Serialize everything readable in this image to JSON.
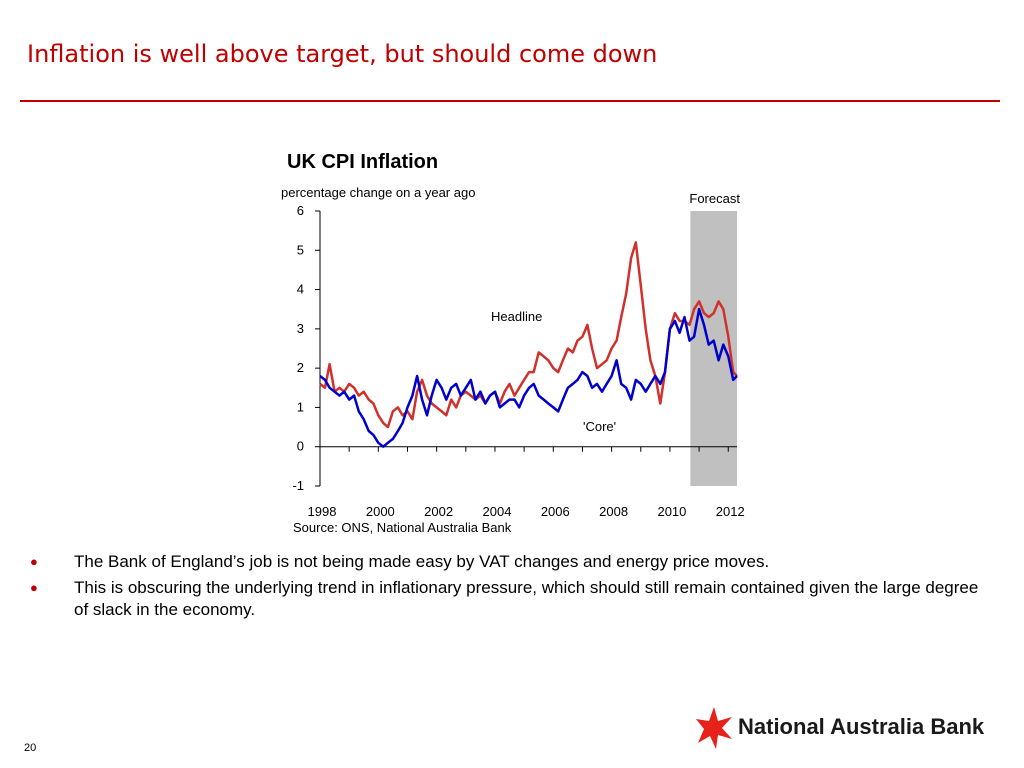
{
  "slide": {
    "title": "Inflation is well above target, but should come down",
    "page_number": "20"
  },
  "bullets": [
    "The Bank of England’s job is not being made easy by VAT changes and energy price moves.",
    "This is obscuring the underlying trend in inflationary pressure, which should still remain contained given the large degree of slack in the economy."
  ],
  "logo": {
    "text": "National Australia Bank",
    "icon": "star-icon"
  },
  "colors": {
    "title": "#c00000",
    "headline": "#d0312d",
    "core": "#0000cc",
    "forecast_band": "#c0c0c0"
  },
  "chart_data": {
    "type": "line",
    "title": "UK CPI Inflation",
    "ylabel": "percentage change on a year ago",
    "source": "Source: ONS,  National Australia Bank",
    "ylim": [
      -1,
      6
    ],
    "yticks": [
      "6",
      "5",
      "4",
      "3",
      "2",
      "1",
      "0",
      "-1"
    ],
    "xlim": [
      1998,
      2012.3
    ],
    "xticks": [
      "1998",
      "2000",
      "2002",
      "2004",
      "2006",
      "2008",
      "2010",
      "2012"
    ],
    "forecast": {
      "label": "Forecast",
      "from": 2010.7,
      "to": 2012.3
    },
    "annotations": {
      "headline": "Headline",
      "core": "'Core'"
    },
    "series": [
      {
        "key": "headline",
        "x": [
          1998.0,
          1998.17,
          1998.33,
          1998.5,
          1998.67,
          1998.83,
          1999.0,
          1999.17,
          1999.33,
          1999.5,
          1999.67,
          1999.83,
          2000.0,
          2000.17,
          2000.33,
          2000.5,
          2000.67,
          2000.83,
          2001.0,
          2001.17,
          2001.33,
          2001.5,
          2001.67,
          2001.83,
          2002.0,
          2002.17,
          2002.33,
          2002.5,
          2002.67,
          2002.83,
          2003.0,
          2003.17,
          2003.33,
          2003.5,
          2003.67,
          2003.83,
          2004.0,
          2004.17,
          2004.33,
          2004.5,
          2004.67,
          2004.83,
          2005.0,
          2005.17,
          2005.33,
          2005.5,
          2005.67,
          2005.83,
          2006.0,
          2006.17,
          2006.33,
          2006.5,
          2006.67,
          2006.83,
          2007.0,
          2007.17,
          2007.33,
          2007.5,
          2007.67,
          2007.83,
          2008.0,
          2008.17,
          2008.33,
          2008.5,
          2008.67,
          2008.83,
          2009.0,
          2009.17,
          2009.33,
          2009.5,
          2009.67,
          2009.83,
          2010.0,
          2010.17,
          2010.33,
          2010.5,
          2010.67,
          2010.83,
          2011.0,
          2011.17,
          2011.33,
          2011.5,
          2011.67,
          2011.83,
          2012.0,
          2012.17,
          2012.3
        ],
        "y": [
          1.6,
          1.5,
          2.1,
          1.4,
          1.5,
          1.4,
          1.6,
          1.5,
          1.3,
          1.4,
          1.2,
          1.1,
          0.8,
          0.6,
          0.5,
          0.9,
          1.0,
          0.8,
          0.9,
          0.7,
          1.4,
          1.7,
          1.3,
          1.1,
          1.0,
          0.9,
          0.8,
          1.2,
          1.0,
          1.3,
          1.4,
          1.3,
          1.2,
          1.3,
          1.1,
          1.3,
          1.4,
          1.1,
          1.4,
          1.6,
          1.3,
          1.5,
          1.7,
          1.9,
          1.9,
          2.4,
          2.3,
          2.2,
          2.0,
          1.9,
          2.2,
          2.5,
          2.4,
          2.7,
          2.8,
          3.1,
          2.5,
          2.0,
          2.1,
          2.2,
          2.5,
          2.7,
          3.3,
          3.9,
          4.8,
          5.2,
          4.1,
          3.0,
          2.2,
          1.8,
          1.1,
          1.9,
          3.0,
          3.4,
          3.2,
          3.2,
          3.1,
          3.5,
          3.7,
          3.4,
          3.3,
          3.4,
          3.7,
          3.5,
          2.8,
          1.9,
          1.8
        ]
      },
      {
        "key": "core",
        "x": [
          1998.0,
          1998.17,
          1998.33,
          1998.5,
          1998.67,
          1998.83,
          1999.0,
          1999.17,
          1999.33,
          1999.5,
          1999.67,
          1999.83,
          2000.0,
          2000.17,
          2000.33,
          2000.5,
          2000.67,
          2000.83,
          2001.0,
          2001.17,
          2001.33,
          2001.5,
          2001.67,
          2001.83,
          2002.0,
          2002.17,
          2002.33,
          2002.5,
          2002.67,
          2002.83,
          2003.0,
          2003.17,
          2003.33,
          2003.5,
          2003.67,
          2003.83,
          2004.0,
          2004.17,
          2004.33,
          2004.5,
          2004.67,
          2004.83,
          2005.0,
          2005.17,
          2005.33,
          2005.5,
          2005.67,
          2005.83,
          2006.0,
          2006.17,
          2006.33,
          2006.5,
          2006.67,
          2006.83,
          2007.0,
          2007.17,
          2007.33,
          2007.5,
          2007.67,
          2007.83,
          2008.0,
          2008.17,
          2008.33,
          2008.5,
          2008.67,
          2008.83,
          2009.0,
          2009.17,
          2009.33,
          2009.5,
          2009.67,
          2009.83,
          2010.0,
          2010.17,
          2010.33,
          2010.5,
          2010.67,
          2010.83,
          2011.0,
          2011.17,
          2011.33,
          2011.5,
          2011.67,
          2011.83,
          2012.0,
          2012.17,
          2012.3
        ],
        "y": [
          1.8,
          1.7,
          1.5,
          1.4,
          1.3,
          1.4,
          1.2,
          1.3,
          0.9,
          0.7,
          0.4,
          0.3,
          0.1,
          0.0,
          0.1,
          0.2,
          0.4,
          0.6,
          1.0,
          1.3,
          1.8,
          1.2,
          0.8,
          1.3,
          1.7,
          1.5,
          1.2,
          1.5,
          1.6,
          1.3,
          1.5,
          1.7,
          1.2,
          1.4,
          1.1,
          1.3,
          1.4,
          1.0,
          1.1,
          1.2,
          1.2,
          1.0,
          1.3,
          1.5,
          1.6,
          1.3,
          1.2,
          1.1,
          1.0,
          0.9,
          1.2,
          1.5,
          1.6,
          1.7,
          1.9,
          1.8,
          1.5,
          1.6,
          1.4,
          1.6,
          1.8,
          2.2,
          1.6,
          1.5,
          1.2,
          1.7,
          1.6,
          1.4,
          1.6,
          1.8,
          1.6,
          1.9,
          3.0,
          3.2,
          2.9,
          3.3,
          2.7,
          2.8,
          3.5,
          3.1,
          2.6,
          2.7,
          2.2,
          2.6,
          2.3,
          1.7,
          1.8
        ]
      }
    ]
  }
}
